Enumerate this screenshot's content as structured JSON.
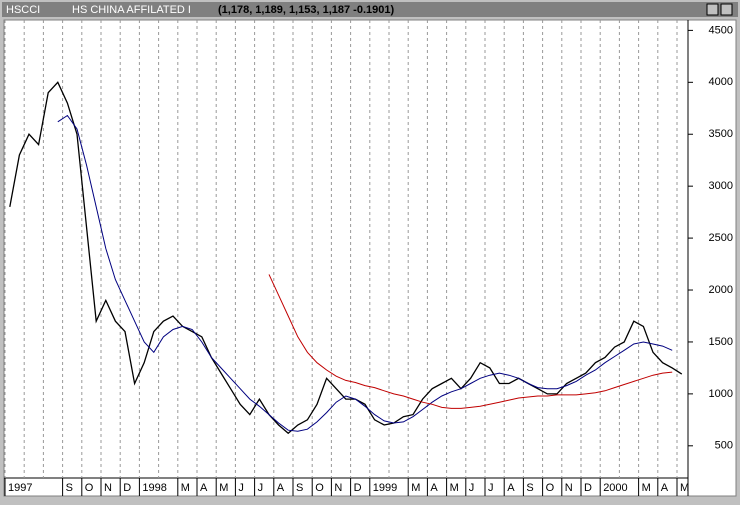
{
  "chart_data": {
    "type": "line",
    "symbol": "HSCCI",
    "title": "HS CHINA AFFILATED I",
    "subtitle": "(1,178, 1,189, 1,153, 1,187 -0.1901)",
    "categories": [
      "1997",
      null,
      null,
      null,
      null,
      null,
      "S",
      null,
      "O",
      null,
      "N",
      null,
      "D",
      null,
      "1998",
      null,
      null,
      null,
      "M",
      null,
      "A",
      null,
      "M",
      null,
      "J",
      null,
      "J",
      null,
      "A",
      null,
      "S",
      null,
      "O",
      null,
      "N",
      null,
      "D",
      null,
      "1999",
      null,
      null,
      null,
      "M",
      null,
      "A",
      null,
      "M",
      null,
      "J",
      null,
      "J",
      null,
      "A",
      null,
      "S",
      null,
      "O",
      null,
      "N",
      null,
      "D",
      null,
      "2000",
      null,
      null,
      null,
      "M",
      null,
      "A",
      null,
      "M",
      null
    ],
    "series": [
      {
        "color": "#000000",
        "values": [
          2800,
          3300,
          3500,
          3400,
          3900,
          4000,
          3800,
          3500,
          2600,
          1700,
          1900,
          1700,
          1600,
          1100,
          1300,
          1600,
          1700,
          1750,
          1650,
          1600,
          1550,
          1350,
          1200,
          1050,
          900,
          800,
          950,
          800,
          700,
          620,
          700,
          750,
          900,
          1150,
          1050,
          950,
          950,
          900,
          750,
          700,
          720,
          780,
          800,
          950,
          1050,
          1100,
          1150,
          1050,
          1150,
          1300,
          1250,
          1100,
          1100,
          1150,
          1100,
          1050,
          1000,
          1000,
          1100,
          1150,
          1200,
          1300,
          1350,
          1450,
          1500,
          1700,
          1650,
          1400,
          1300,
          1250,
          1190,
          null
        ]
      },
      {
        "color": "#000080",
        "values": [
          null,
          null,
          null,
          null,
          null,
          3620,
          3680,
          3550,
          3200,
          2800,
          2400,
          2100,
          1900,
          1700,
          1500,
          1400,
          1550,
          1620,
          1650,
          1620,
          1500,
          1350,
          1250,
          1150,
          1050,
          950,
          880,
          800,
          720,
          650,
          640,
          660,
          730,
          820,
          920,
          980,
          950,
          880,
          800,
          740,
          720,
          730,
          780,
          850,
          920,
          980,
          1020,
          1050,
          1100,
          1150,
          1180,
          1200,
          1180,
          1150,
          1100,
          1060,
          1050,
          1050,
          1080,
          1120,
          1180,
          1230,
          1300,
          1360,
          1420,
          1480,
          1500,
          1480,
          1460,
          1420,
          null,
          null
        ]
      },
      {
        "color": "#c00000",
        "values": [
          null,
          null,
          null,
          null,
          null,
          null,
          null,
          null,
          null,
          null,
          null,
          null,
          null,
          null,
          null,
          null,
          null,
          null,
          null,
          null,
          null,
          null,
          null,
          null,
          null,
          null,
          null,
          2150,
          1950,
          1750,
          1550,
          1400,
          1300,
          1230,
          1170,
          1130,
          1110,
          1080,
          1060,
          1030,
          1000,
          980,
          950,
          920,
          900,
          870,
          860,
          860,
          870,
          880,
          900,
          920,
          940,
          960,
          970,
          980,
          980,
          990,
          990,
          990,
          1000,
          1010,
          1030,
          1060,
          1090,
          1120,
          1150,
          1180,
          1200,
          1210,
          null,
          null
        ]
      }
    ],
    "ylim": [
      190,
      4600
    ],
    "yticks": [
      500,
      1000,
      1500,
      2000,
      2500,
      3000,
      3500,
      4000,
      4500
    ]
  }
}
